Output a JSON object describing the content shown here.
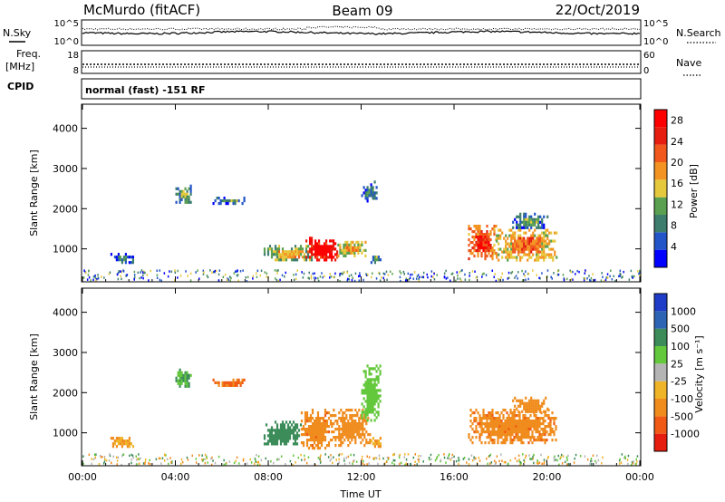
{
  "header": {
    "station": "McMurdo (fitACF)",
    "beam": "Beam 09",
    "date": "22/Oct/2019"
  },
  "noise_panel": {
    "left_label": "N.Sky",
    "right_label": "N.Search",
    "tick_top": "10^5",
    "tick_bottom": "10^0"
  },
  "freq_panel": {
    "left_label_1": "Freq.",
    "left_label_2": "[MHz]",
    "left_ticks": [
      "18",
      "8"
    ],
    "right_label": "Nave",
    "right_ticks": [
      "60",
      "0"
    ]
  },
  "cpid_panel": {
    "label": "CPID",
    "value": "normal (fast) -151 RF"
  },
  "chart_data": [
    {
      "type": "heatmap",
      "parameter": "Power",
      "ylabel": "Slant Range [km]",
      "xlabel": "Time UT",
      "x_ticks": [
        "00:00",
        "04:00",
        "08:00",
        "12:00",
        "16:00",
        "20:00",
        "00:00"
      ],
      "x_range_hours": [
        0,
        24
      ],
      "y_ticks": [
        1000,
        2000,
        3000,
        4000
      ],
      "ylim": [
        180,
        4600
      ],
      "colorbar": {
        "label": "Power [dB]",
        "ticks": [
          4,
          8,
          12,
          16,
          20,
          24,
          28
        ],
        "range": [
          0,
          30
        ],
        "colors": [
          "#0000ff",
          "#2255c8",
          "#3c7d6e",
          "#5aa050",
          "#e6c83c",
          "#f39422",
          "#f0581c",
          "#e61e10",
          "#ff0000"
        ]
      },
      "echo_regions": [
        {
          "time_h": [
            1.2,
            2.2
          ],
          "range_km": [
            650,
            900
          ],
          "power_db": 6
        },
        {
          "time_h": [
            4.0,
            4.7
          ],
          "range_km": [
            2150,
            2600
          ],
          "power_db": 10
        },
        {
          "time_h": [
            5.6,
            7.0
          ],
          "range_km": [
            2150,
            2300
          ],
          "power_db": 8
        },
        {
          "time_h": [
            7.8,
            10.0
          ],
          "range_km": [
            700,
            1100
          ],
          "power_db": 14
        },
        {
          "time_h": [
            9.6,
            11.0
          ],
          "range_km": [
            700,
            1300
          ],
          "power_db": 28
        },
        {
          "time_h": [
            10.9,
            12.2
          ],
          "range_km": [
            850,
            1200
          ],
          "power_db": 16
        },
        {
          "time_h": [
            12.4,
            12.8
          ],
          "range_km": [
            650,
            900
          ],
          "power_db": 10
        },
        {
          "time_h": [
            12.0,
            12.7
          ],
          "range_km": [
            2200,
            2700
          ],
          "power_db": 6
        },
        {
          "time_h": [
            16.6,
            17.8
          ],
          "range_km": [
            750,
            1600
          ],
          "power_db": 22
        },
        {
          "time_h": [
            17.8,
            20.4
          ],
          "range_km": [
            750,
            1500
          ],
          "power_db": 18
        },
        {
          "time_h": [
            18.5,
            20.0
          ],
          "range_km": [
            1500,
            1900
          ],
          "power_db": 8
        }
      ]
    },
    {
      "type": "heatmap",
      "parameter": "Velocity",
      "ylabel": "Slant Range [km]",
      "xlabel": "Time UT",
      "x_ticks": [
        "00:00",
        "04:00",
        "08:00",
        "12:00",
        "16:00",
        "20:00",
        "00:00"
      ],
      "x_range_hours": [
        0,
        24
      ],
      "y_ticks": [
        1000,
        2000,
        3000,
        4000
      ],
      "ylim": [
        180,
        4600
      ],
      "colorbar": {
        "label": "Velocity [m s⁻¹]",
        "ticks": [
          "1000",
          "500",
          "100",
          "25",
          "-25",
          "-100",
          "-500",
          "-1000"
        ],
        "colors": [
          "#1e3cc8",
          "#2e64b4",
          "#3c8c5a",
          "#64c83c",
          "#b4b4b4",
          "#f0b428",
          "#f08c1e",
          "#f05a14",
          "#e61e10"
        ]
      },
      "echo_regions": [
        {
          "time_h": [
            1.2,
            2.2
          ],
          "range_km": [
            650,
            900
          ],
          "velocity_ms": -100
        },
        {
          "time_h": [
            4.0,
            4.7
          ],
          "range_km": [
            2150,
            2600
          ],
          "velocity_ms": 100
        },
        {
          "time_h": [
            5.6,
            7.0
          ],
          "range_km": [
            2150,
            2350
          ],
          "velocity_ms": -500
        },
        {
          "time_h": [
            7.8,
            9.4
          ],
          "range_km": [
            700,
            1300
          ],
          "velocity_ms": 300
        },
        {
          "time_h": [
            9.4,
            10.7
          ],
          "range_km": [
            600,
            1600
          ],
          "velocity_ms": -400
        },
        {
          "time_h": [
            10.7,
            12.4
          ],
          "range_km": [
            700,
            1600
          ],
          "velocity_ms": -150
        },
        {
          "time_h": [
            12.4,
            12.8
          ],
          "range_km": [
            650,
            900
          ],
          "velocity_ms": -100
        },
        {
          "time_h": [
            12.0,
            12.8
          ],
          "range_km": [
            1300,
            2700
          ],
          "velocity_ms": 60
        },
        {
          "time_h": [
            16.6,
            20.4
          ],
          "range_km": [
            750,
            1600
          ],
          "velocity_ms": -400
        },
        {
          "time_h": [
            18.5,
            20.0
          ],
          "range_km": [
            1500,
            1900
          ],
          "velocity_ms": -300
        }
      ]
    }
  ]
}
